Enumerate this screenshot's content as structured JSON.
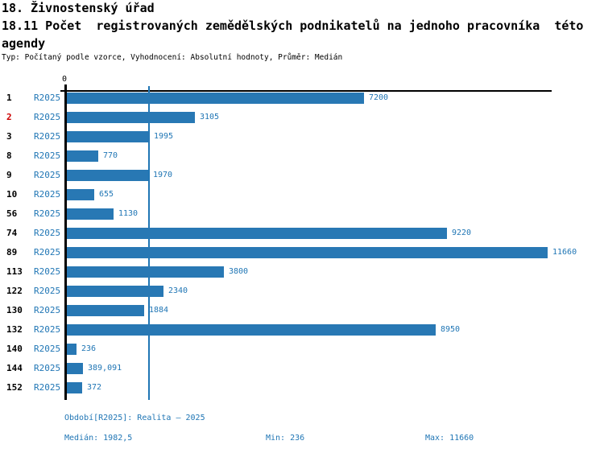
{
  "header": {
    "title_line1": "18. Živnostenský úřad",
    "title_line2": "18.11 Počet  registrovaných zemědělských podnikatelů na jednoho pracovníka  této",
    "title_line3": "agendy",
    "subtitle": "Typ: Počítaný podle vzorce, Vyhodnocení: Absolutní hodnoty, Průměr: Medián"
  },
  "chart_data": {
    "type": "bar",
    "orientation": "horizontal",
    "title": "18.11 Počet registrovaných zemědělských podnikatelů na jednoho pracovníka této agendy",
    "series_label": "R2025",
    "categories": [
      "1",
      "2",
      "3",
      "8",
      "9",
      "10",
      "56",
      "74",
      "89",
      "113",
      "122",
      "130",
      "132",
      "140",
      "144",
      "152"
    ],
    "values": [
      7200,
      3105,
      1995,
      770,
      1970,
      655,
      1130,
      9220,
      11660,
      3800,
      2340,
      1884,
      8950,
      236,
      389.091,
      372
    ],
    "value_labels": [
      "7200",
      "3105",
      "1995",
      "770",
      "1970",
      "655",
      "1130",
      "9220",
      "11660",
      "3800",
      "2340",
      "1884",
      "8950",
      "236",
      "389,091",
      "372"
    ],
    "highlighted_category": "2",
    "median": 1982.5,
    "axis": {
      "zero_label": "0",
      "min": 0,
      "max": 11660,
      "grid": false
    },
    "legend_position": "none",
    "colors": {
      "bar": "#2878b4",
      "text_blue": "#2076b5",
      "highlight_red": "#cc0000",
      "axis_black": "#000000"
    }
  },
  "footer": {
    "period": "Období[R2025]: Realita – 2025",
    "median": "Medián: 1982,5",
    "min": "Min: 236",
    "max": "Max: 11660"
  }
}
